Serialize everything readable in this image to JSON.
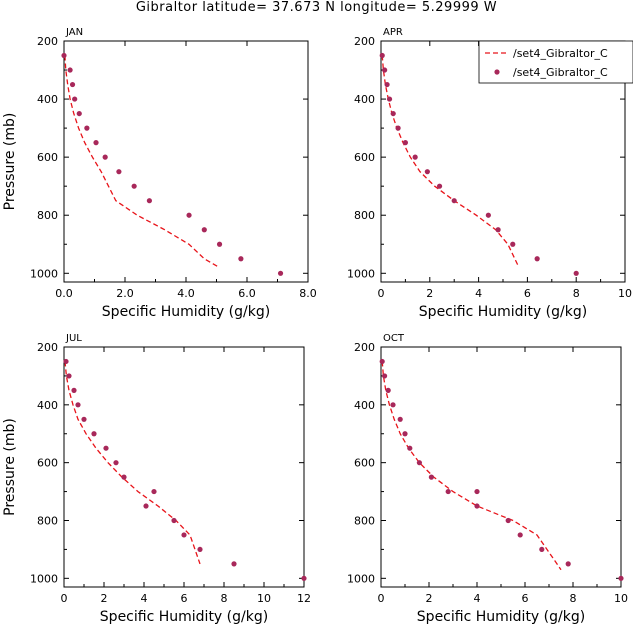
{
  "title": "Gibraltor   latitude= 37.673 N longitude= 5.29999 W",
  "legend": {
    "line_label": "/set4_Gibraltor_C",
    "point_label": "/set4_Gibraltor_C"
  },
  "colors": {
    "line": "#e8141a",
    "points": "#a8285a",
    "axis": "#000000"
  },
  "chart_data": [
    {
      "type": "line",
      "panel": "JAN",
      "xlabel": "Specific Humidity (g/kg)",
      "ylabel": "Pressure (mb)",
      "xlim": [
        0,
        8
      ],
      "ylim": [
        200,
        1030
      ],
      "y_inverted": true,
      "xticks": [
        0,
        2,
        4,
        6,
        8
      ],
      "xtick_labels": [
        "0.0",
        "2.0",
        "4.0",
        "6.0",
        "8.0"
      ],
      "yticks": [
        200,
        400,
        600,
        800,
        1000
      ],
      "ytick_labels": [
        "200",
        "400",
        "600",
        "800",
        "1000"
      ],
      "series": [
        {
          "name": "/set4_Gibraltor_C",
          "kind": "line",
          "x": [
            0.03,
            0.06,
            0.12,
            0.2,
            0.32,
            0.48,
            0.68,
            0.93,
            1.22,
            1.7,
            2.4,
            3.3,
            4.1,
            4.6,
            5.1
          ],
          "y": [
            250,
            300,
            350,
            400,
            450,
            500,
            550,
            600,
            650,
            750,
            800,
            850,
            900,
            950,
            980
          ]
        },
        {
          "name": "/set4_Gibraltor_C",
          "kind": "points",
          "x": [
            0.0,
            0.2,
            0.28,
            0.35,
            0.5,
            0.75,
            1.05,
            1.35,
            1.8,
            2.3,
            2.8,
            4.1,
            4.6,
            5.1,
            5.8,
            7.1
          ],
          "y": [
            250,
            300,
            350,
            400,
            450,
            500,
            550,
            600,
            650,
            700,
            750,
            800,
            850,
            900,
            950,
            1000
          ]
        }
      ]
    },
    {
      "type": "line",
      "panel": "APR",
      "xlabel": "Specific Humidity (g/kg)",
      "ylabel": "",
      "xlim": [
        0,
        10
      ],
      "ylim": [
        200,
        1030
      ],
      "y_inverted": true,
      "xticks": [
        0,
        2,
        4,
        6,
        8,
        10
      ],
      "xtick_labels": [
        "0",
        "2",
        "4",
        "6",
        "8",
        "10"
      ],
      "yticks": [
        200,
        400,
        600,
        800,
        1000
      ],
      "ytick_labels": [
        "200",
        "400",
        "600",
        "800",
        "1000"
      ],
      "show_legend": true,
      "series": [
        {
          "name": "/set4_Gibraltor_C",
          "kind": "line",
          "x": [
            0.05,
            0.1,
            0.18,
            0.3,
            0.45,
            0.65,
            0.9,
            1.2,
            1.6,
            2.2,
            3.0,
            3.9,
            4.7,
            5.2,
            5.6
          ],
          "y": [
            250,
            300,
            350,
            400,
            450,
            500,
            550,
            600,
            650,
            700,
            750,
            800,
            850,
            900,
            970
          ]
        },
        {
          "name": "/set4_Gibraltor_C",
          "kind": "points",
          "x": [
            0.05,
            0.15,
            0.25,
            0.35,
            0.5,
            0.7,
            1.0,
            1.4,
            1.9,
            2.4,
            3.0,
            4.4,
            4.8,
            5.4,
            6.4,
            8.0
          ],
          "y": [
            250,
            300,
            350,
            400,
            450,
            500,
            550,
            600,
            650,
            700,
            750,
            800,
            850,
            900,
            950,
            1000
          ]
        }
      ]
    },
    {
      "type": "line",
      "panel": "JUL",
      "xlabel": "Specific Humidity (g/kg)",
      "ylabel": "Pressure (mb)",
      "xlim": [
        0,
        12
      ],
      "ylim": [
        200,
        1030
      ],
      "y_inverted": true,
      "xticks": [
        0,
        2,
        4,
        6,
        8,
        10,
        12
      ],
      "xtick_labels": [
        "0",
        "2",
        "4",
        "6",
        "8",
        "10",
        "12"
      ],
      "yticks": [
        200,
        400,
        600,
        800,
        1000
      ],
      "ytick_labels": [
        "200",
        "400",
        "600",
        "800",
        "1000"
      ],
      "series": [
        {
          "name": "/set4_Gibraltor_C",
          "kind": "line",
          "x": [
            0.05,
            0.12,
            0.25,
            0.45,
            0.7,
            1.1,
            1.6,
            2.2,
            2.9,
            3.7,
            4.7,
            5.6,
            6.3,
            6.8
          ],
          "y": [
            250,
            300,
            350,
            400,
            450,
            500,
            550,
            600,
            650,
            700,
            750,
            800,
            850,
            950
          ]
        },
        {
          "name": "/set4_Gibraltor_C",
          "kind": "points",
          "x": [
            0.1,
            0.25,
            0.5,
            0.7,
            1.0,
            1.5,
            2.1,
            2.6,
            3.0,
            4.5,
            4.1,
            5.5,
            6.0,
            6.8,
            8.5,
            12.0
          ],
          "y": [
            250,
            300,
            350,
            400,
            450,
            500,
            550,
            600,
            650,
            700,
            750,
            800,
            850,
            900,
            950,
            1000
          ]
        }
      ]
    },
    {
      "type": "line",
      "panel": "OCT",
      "xlabel": "Specific Humidity (g/kg)",
      "ylabel": "",
      "xlim": [
        0,
        10
      ],
      "ylim": [
        200,
        1030
      ],
      "y_inverted": true,
      "xticks": [
        0,
        2,
        4,
        6,
        8,
        10
      ],
      "xtick_labels": [
        "0",
        "2",
        "4",
        "6",
        "8",
        "10"
      ],
      "yticks": [
        200,
        400,
        600,
        800,
        1000
      ],
      "ytick_labels": [
        "200",
        "400",
        "600",
        "800",
        "1000"
      ],
      "series": [
        {
          "name": "/set4_Gibraltor_C",
          "kind": "line",
          "x": [
            0.05,
            0.1,
            0.2,
            0.35,
            0.55,
            0.8,
            1.15,
            1.6,
            2.2,
            3.0,
            4.0,
            5.5,
            6.5,
            7.5
          ],
          "y": [
            250,
            300,
            350,
            400,
            450,
            500,
            550,
            600,
            650,
            700,
            750,
            800,
            850,
            970
          ]
        },
        {
          "name": "/set4_Gibraltor_C",
          "kind": "points",
          "x": [
            0.05,
            0.15,
            0.3,
            0.5,
            0.8,
            1.0,
            1.2,
            1.6,
            2.1,
            2.8,
            4.0,
            4.0,
            5.3,
            5.8,
            6.7,
            7.8,
            10.0
          ],
          "y": [
            250,
            300,
            350,
            400,
            450,
            500,
            550,
            600,
            650,
            700,
            700,
            750,
            800,
            850,
            900,
            950,
            1000
          ]
        }
      ]
    }
  ]
}
